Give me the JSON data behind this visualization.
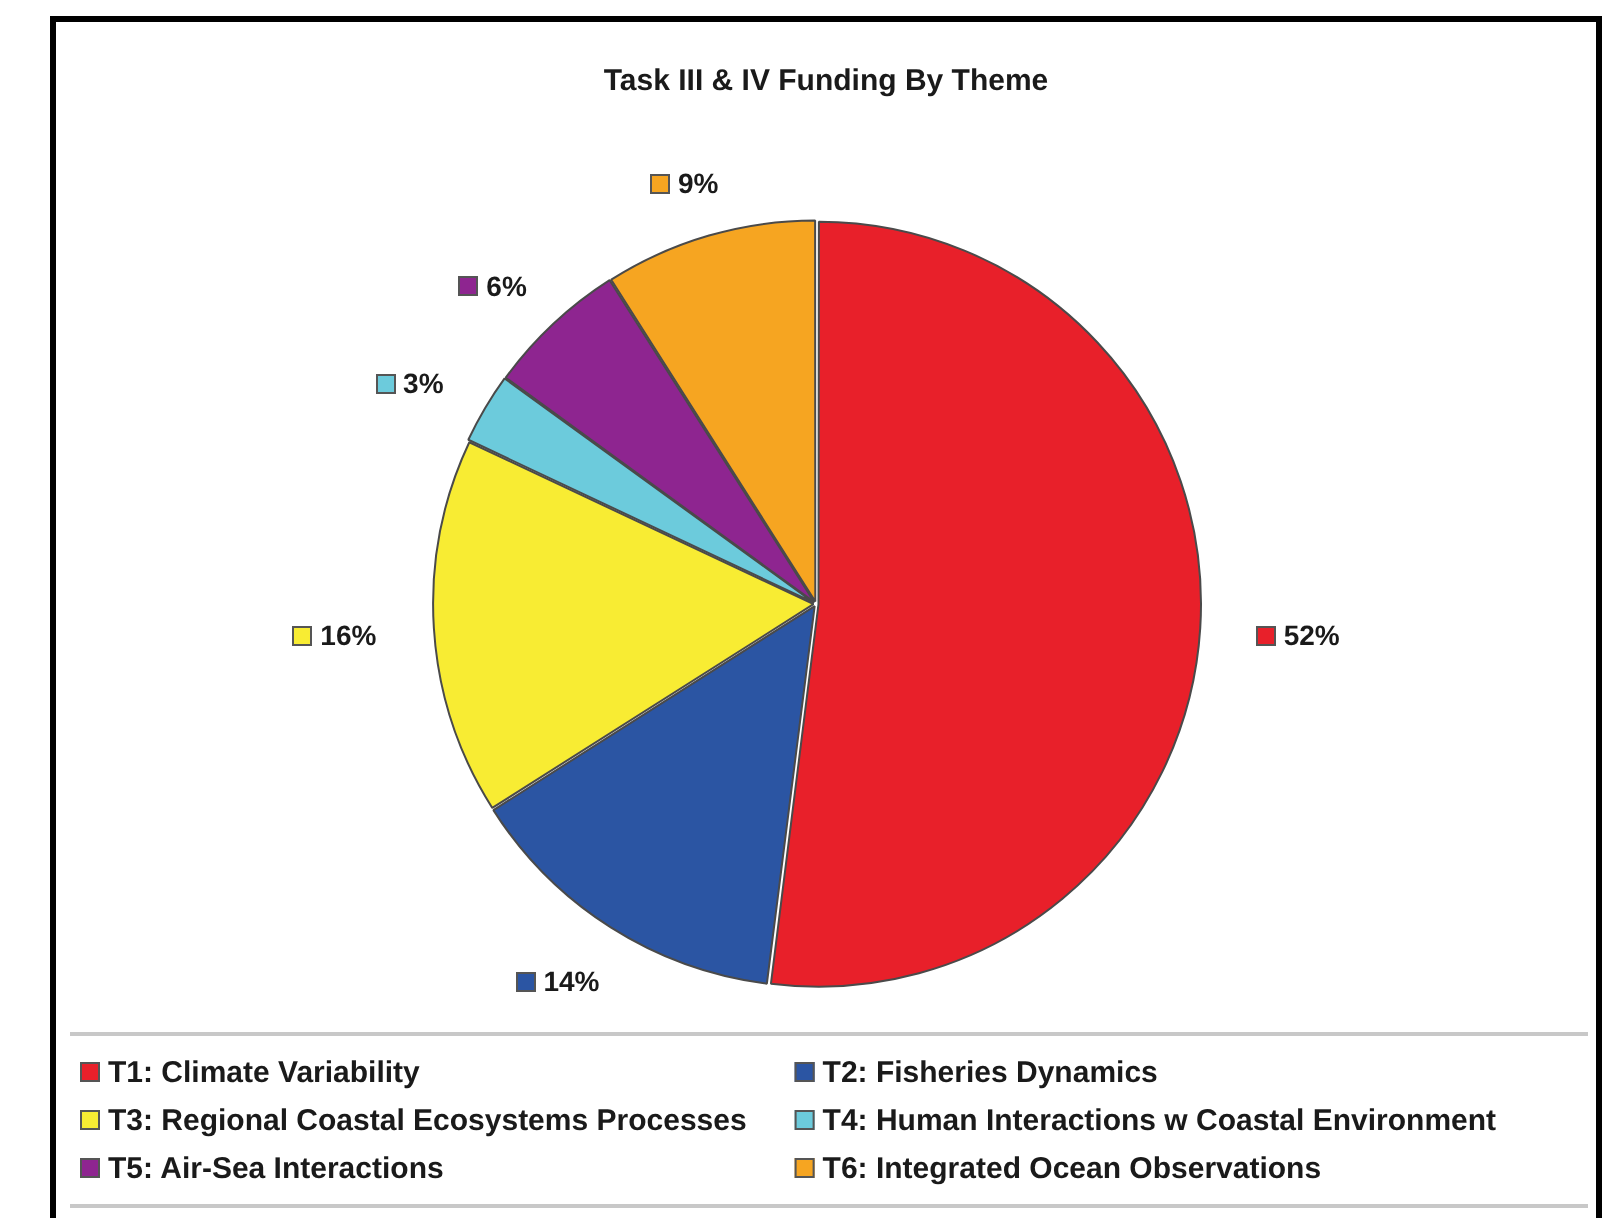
{
  "chart_data": {
    "type": "pie",
    "title": "Task III & IV Funding By Theme",
    "categories": [
      "T1: Climate Variability",
      "T2: Fisheries Dynamics",
      "T3: Regional Coastal Ecosystems Processes",
      "T4: Human Interactions w Coastal Environment",
      "T5: Air-Sea Interactions",
      "T6: Integrated Ocean Observations"
    ],
    "values": [
      52,
      14,
      16,
      3,
      6,
      9
    ],
    "colors": [
      "#e8202a",
      "#2b55a3",
      "#f8ec33",
      "#6ccbdc",
      "#8e2590",
      "#f6a521"
    ],
    "value_labels": [
      "52%",
      "14%",
      "16%",
      "3%",
      "6%",
      "9%"
    ],
    "legend": "bottom"
  }
}
